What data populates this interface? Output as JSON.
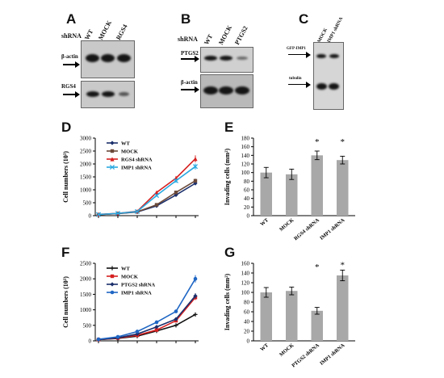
{
  "panels": {
    "A": {
      "label": "A",
      "shrna": "shRNA",
      "lanes": [
        "WT",
        "MOCK",
        "RGS4"
      ],
      "bands": [
        "β-actin",
        "RGS4"
      ]
    },
    "B": {
      "label": "B",
      "shrna": "shRNA",
      "lanes": [
        "WT",
        "MOCK",
        "PTGS2"
      ],
      "bands": [
        "PTGS2",
        "β-actin"
      ]
    },
    "C": {
      "label": "C",
      "lanes": [
        "MOCK",
        "IMP1 shRNA"
      ],
      "bands": [
        "GFP-IMP1",
        "tubulin"
      ]
    },
    "D": {
      "label": "D"
    },
    "E": {
      "label": "E"
    },
    "F": {
      "label": "F"
    },
    "G": {
      "label": "G"
    }
  },
  "chart_data": [
    {
      "id": "D",
      "type": "line",
      "ylabel": "Cell numbers (10³)",
      "ylim": [
        0,
        3000
      ],
      "yticks": [
        0,
        500,
        1000,
        1500,
        2000,
        2500,
        3000
      ],
      "x": [
        0,
        1,
        2,
        3,
        4,
        5
      ],
      "series": [
        {
          "name": "WT",
          "color": "#1b2f6b",
          "marker": "diamond",
          "values": [
            40,
            80,
            140,
            380,
            800,
            1250
          ]
        },
        {
          "name": "MOCK",
          "color": "#6b4a3a",
          "marker": "square",
          "values": [
            40,
            85,
            150,
            420,
            900,
            1350
          ]
        },
        {
          "name": "RGS4 shRNA",
          "color": "#d62020",
          "marker": "triangle",
          "values": [
            50,
            90,
            170,
            900,
            1450,
            2200
          ]
        },
        {
          "name": "IMP1 shRNA",
          "color": "#29a8e0",
          "marker": "x",
          "values": [
            45,
            90,
            160,
            780,
            1350,
            1900
          ]
        }
      ]
    },
    {
      "id": "E",
      "type": "bar",
      "ylabel": "Invading cells (mm²)",
      "ylim": [
        0,
        180
      ],
      "yticks": [
        0,
        20,
        40,
        60,
        80,
        100,
        120,
        140,
        160,
        180
      ],
      "categories": [
        "WT",
        "MOCK",
        "RGS4 shRNA",
        "IMP1 shRNA"
      ],
      "values": [
        100,
        96,
        140,
        129
      ],
      "errors": [
        12,
        12,
        10,
        9
      ],
      "annotations": [
        "",
        "",
        "*",
        "*"
      ]
    },
    {
      "id": "F",
      "type": "line",
      "ylabel": "Cell numbers (10³)",
      "ylim": [
        0,
        2500
      ],
      "yticks": [
        0,
        500,
        1000,
        1500,
        2000,
        2500
      ],
      "x": [
        0,
        1,
        2,
        3,
        4,
        5
      ],
      "series": [
        {
          "name": "WT",
          "color": "#111111",
          "marker": "plus",
          "values": [
            40,
            80,
            150,
            320,
            500,
            850
          ]
        },
        {
          "name": "MOCK",
          "color": "#d62020",
          "marker": "square",
          "values": [
            40,
            90,
            180,
            350,
            650,
            1400
          ]
        },
        {
          "name": "PTGS2 shRNA",
          "color": "#1b2f6b",
          "marker": "diamond",
          "values": [
            40,
            100,
            220,
            450,
            700,
            1450
          ]
        },
        {
          "name": "IMP1 shRNA",
          "color": "#1f66c4",
          "marker": "circle",
          "values": [
            50,
            130,
            300,
            600,
            950,
            2000
          ]
        }
      ]
    },
    {
      "id": "G",
      "type": "bar",
      "ylabel": "Invading cells (mm²)",
      "ylim": [
        0,
        160
      ],
      "yticks": [
        0,
        20,
        40,
        60,
        80,
        100,
        120,
        140,
        160
      ],
      "categories": [
        "WT",
        "MOCK",
        "PTGS2 shRNA",
        "IMP1 shRNA"
      ],
      "values": [
        100,
        103,
        62,
        135
      ],
      "errors": [
        10,
        8,
        7,
        11
      ],
      "annotations": [
        "",
        "",
        "*",
        "*"
      ]
    }
  ]
}
